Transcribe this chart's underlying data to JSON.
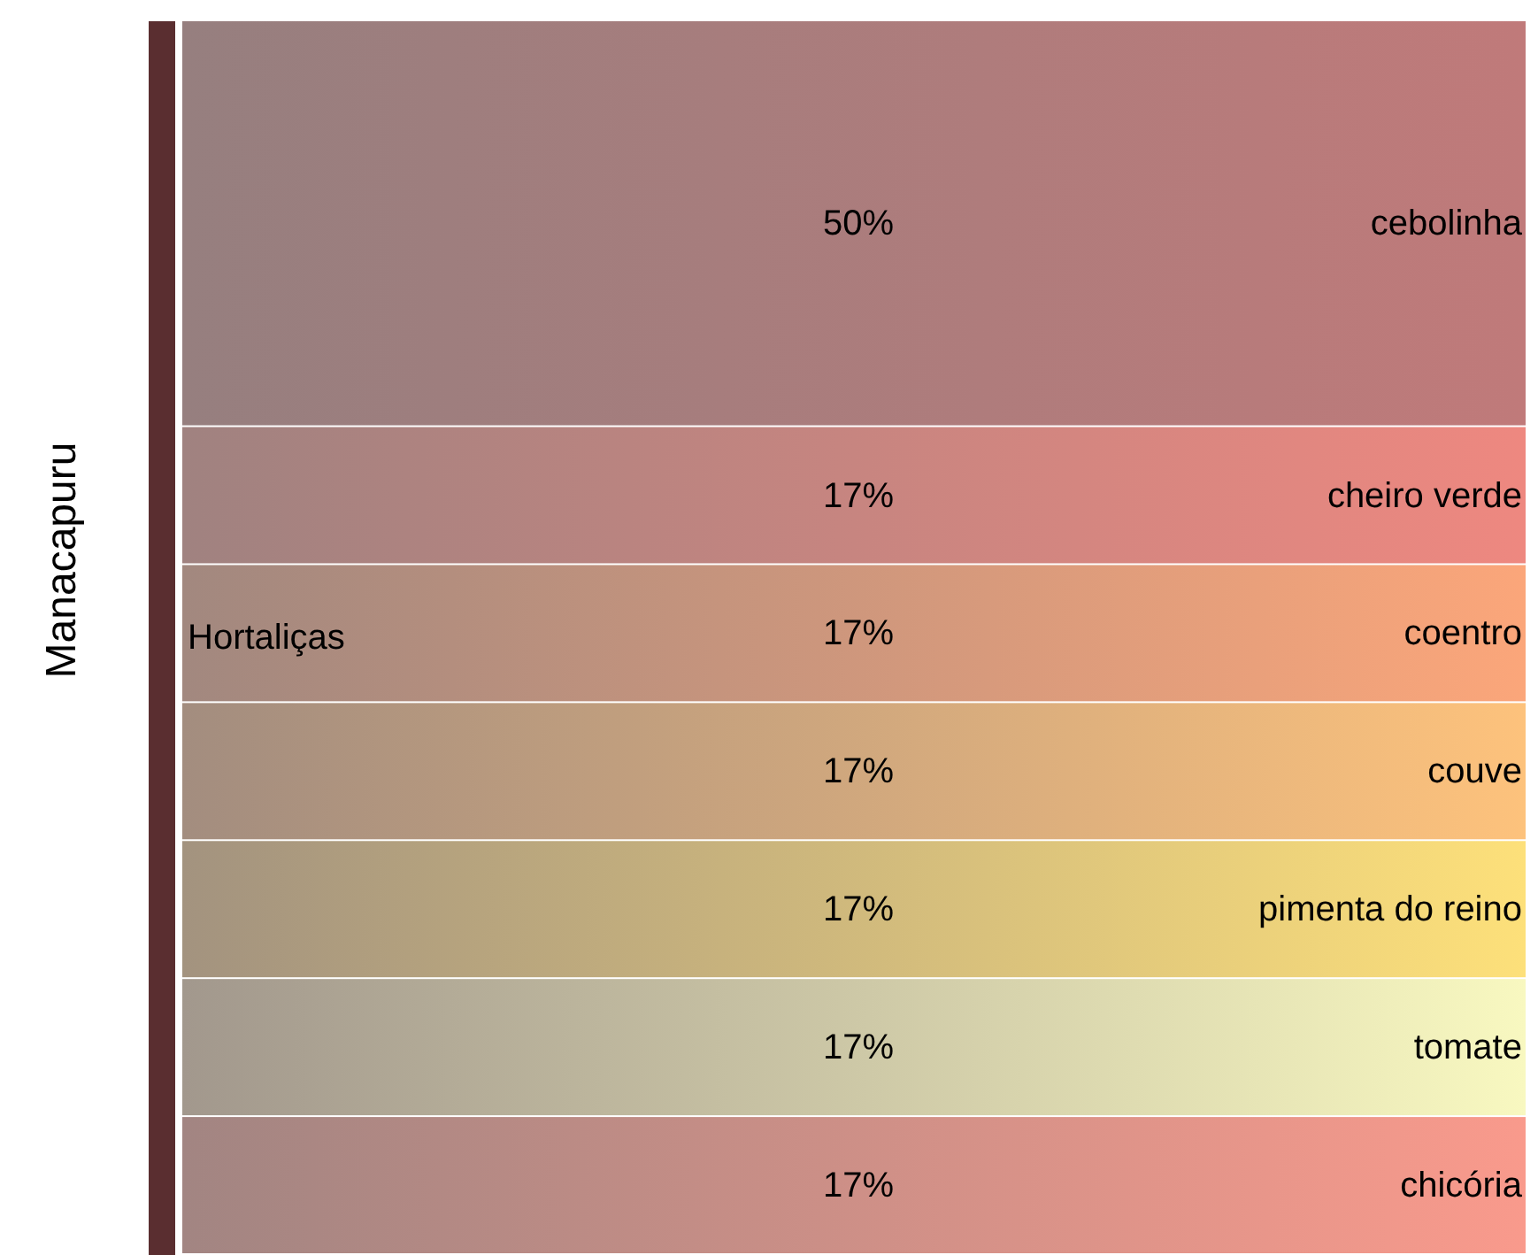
{
  "chart_data": {
    "type": "other",
    "ylabel": "Manacapuru",
    "annotations": [
      "Hortaliças"
    ],
    "categories": [
      "cebolinha",
      "cheiro verde",
      "coentro",
      "couve",
      "pimenta do reino",
      "tomate",
      "chicória"
    ],
    "values": [
      50,
      17,
      17,
      17,
      17,
      17,
      17
    ],
    "value_labels": [
      "50%",
      "17%",
      "17%",
      "17%",
      "17%",
      "17%",
      "17%"
    ],
    "colors": [
      "#c07a7a",
      "#ee8880",
      "#fba67a",
      "#fdc27c",
      "#fde07a",
      "#f8f8c0",
      "#f99a8c"
    ]
  }
}
